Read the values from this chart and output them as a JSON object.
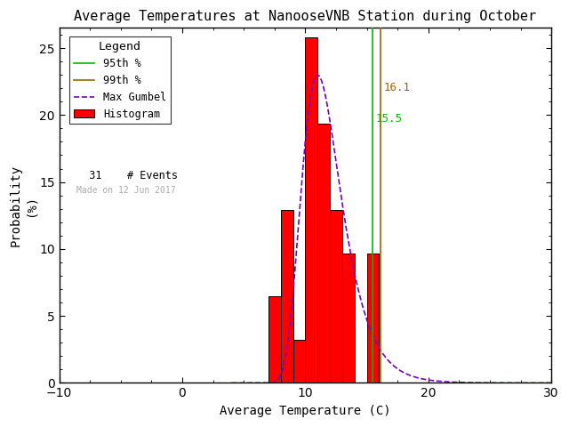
{
  "title": "Average Temperatures at NanooseVNB Station during October",
  "xlabel": "Average Temperature (C)",
  "ylabel": "Probability\n(%)",
  "xlim": [
    -10,
    30
  ],
  "ylim": [
    0,
    26.5
  ],
  "xticks": [
    -10,
    0,
    10,
    20,
    30
  ],
  "yticks": [
    0,
    5,
    10,
    15,
    20,
    25
  ],
  "background_color": "#ffffff",
  "bar_color": "red",
  "bar_edgecolor": "black",
  "bar_bins_left": [
    7,
    8,
    9,
    10,
    11,
    12,
    13,
    15
  ],
  "bar_heights": [
    6.45,
    12.9,
    3.23,
    25.81,
    19.35,
    12.9,
    9.68,
    9.68
  ],
  "bar_width": 1.0,
  "gumbel_mu": 11.0,
  "gumbel_beta": 1.6,
  "line_95_x": 15.5,
  "line_99_x": 16.1,
  "line_95_color": "#00bb00",
  "line_99_color": "#996600",
  "gumbel_color": "#7700bb",
  "label_99_text": "16.1",
  "label_95_text": "15.5",
  "n_events": 31,
  "watermark": "Made on 12 Jun 2017",
  "legend_title": "Legend",
  "title_fontsize": 11,
  "axis_fontsize": 10,
  "tick_fontsize": 10
}
